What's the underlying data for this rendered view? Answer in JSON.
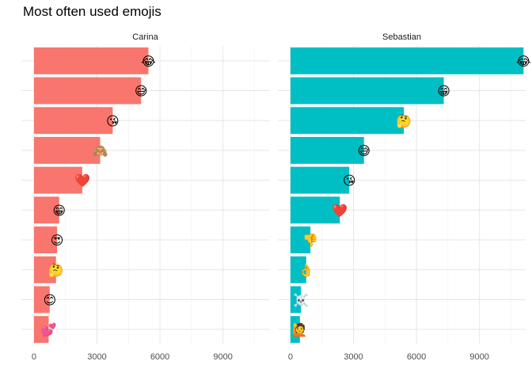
{
  "chart_data": {
    "type": "bar",
    "orientation": "horizontal",
    "title": "Most often used emojis",
    "xlabel": "",
    "ylabel": "",
    "xlim": [
      -600,
      11200
    ],
    "xticks": [
      0,
      3000,
      6000,
      9000
    ],
    "grid": true,
    "legend": "none",
    "panels": [
      {
        "name": "Carina",
        "color": "#F8766D",
        "bars": [
          {
            "emoji": "😂",
            "emoji_name": "face-with-tears-of-joy",
            "value": 5450
          },
          {
            "emoji": "😅",
            "emoji_name": "grinning-face-with-sweat",
            "value": 5100
          },
          {
            "emoji": "😘",
            "emoji_name": "face-blowing-a-kiss",
            "value": 3750
          },
          {
            "emoji": "🙈",
            "emoji_name": "see-no-evil-monkey",
            "value": 3150
          },
          {
            "emoji": "❤️",
            "emoji_name": "red-heart",
            "value": 2300
          },
          {
            "emoji": "😁",
            "emoji_name": "beaming-face-with-smiling-eyes",
            "value": 1200
          },
          {
            "emoji": "😍",
            "emoji_name": "smiling-face-with-heart-eyes",
            "value": 1100
          },
          {
            "emoji": "🤔",
            "emoji_name": "thinking-face",
            "value": 1050
          },
          {
            "emoji": "😊",
            "emoji_name": "smiling-face-with-smiling-eyes",
            "value": 750
          },
          {
            "emoji": "💕",
            "emoji_name": "two-hearts",
            "value": 700
          }
        ]
      },
      {
        "name": "Sebastian",
        "color": "#00BFC4",
        "bars": [
          {
            "emoji": "😂",
            "emoji_name": "face-with-tears-of-joy",
            "value": 11100
          },
          {
            "emoji": "😁",
            "emoji_name": "beaming-face-with-smiling-eyes",
            "value": 7300
          },
          {
            "emoji": "🤔",
            "emoji_name": "thinking-face",
            "value": 5400
          },
          {
            "emoji": "😅",
            "emoji_name": "grinning-face-with-sweat",
            "value": 3500
          },
          {
            "emoji": "😘",
            "emoji_name": "face-blowing-a-kiss",
            "value": 2800
          },
          {
            "emoji": "❤️",
            "emoji_name": "red-heart",
            "value": 2350
          },
          {
            "emoji": "👎",
            "emoji_name": "thumbs-down",
            "value": 950
          },
          {
            "emoji": "👌",
            "emoji_name": "ok-hand",
            "value": 750
          },
          {
            "emoji": "☠️",
            "emoji_name": "skull-and-crossbones",
            "value": 500
          },
          {
            "emoji": "🙋",
            "emoji_name": "person-raising-hand",
            "value": 450
          }
        ]
      }
    ]
  }
}
